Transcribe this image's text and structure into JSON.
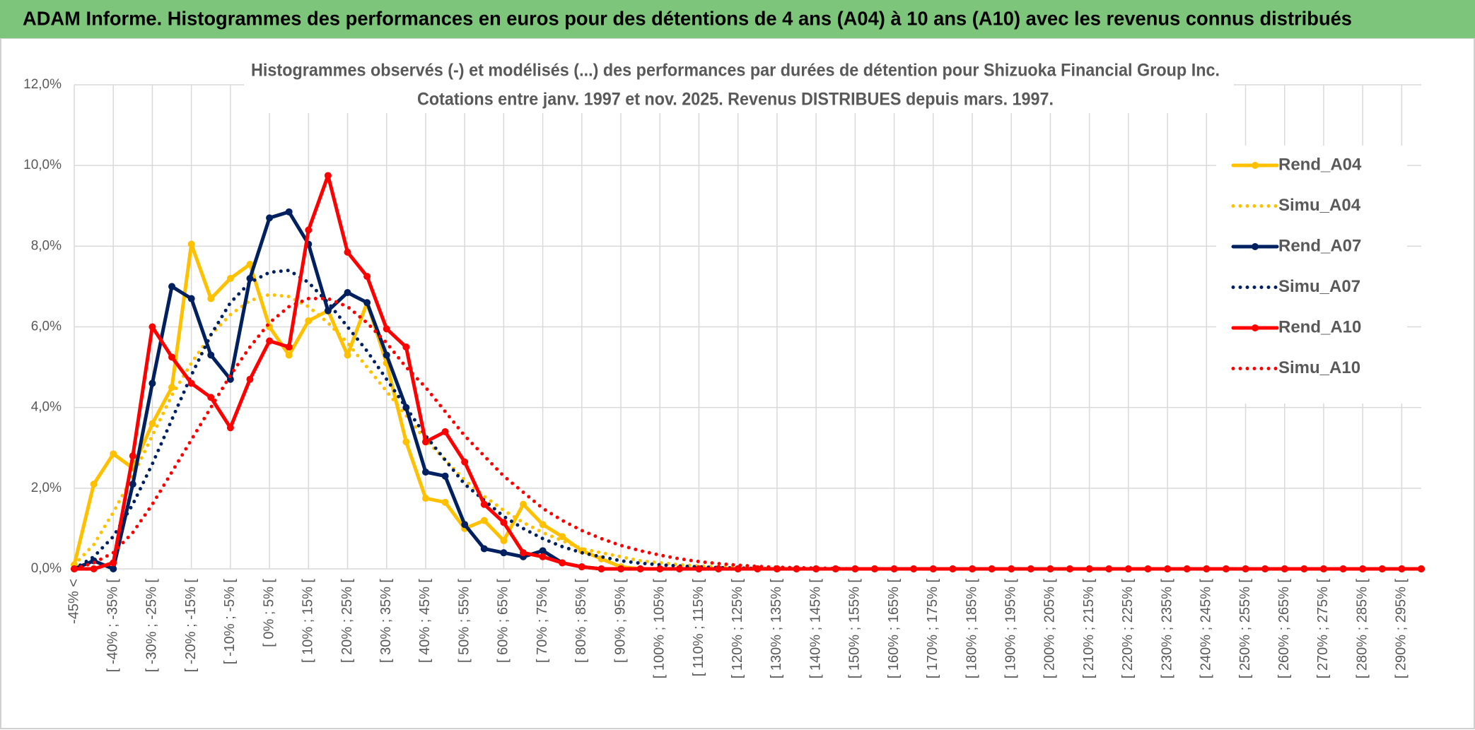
{
  "header": {
    "title": "ADAM Informe. Histogrammes des performances en euros pour des détentions de 4 ans (A04) à 10 ans (A10) avec les revenus connus distribués"
  },
  "chart_data": {
    "type": "line",
    "title": "Histogrammes observés (-) et modélisés (...) des performances par durées de détention pour Shizuoka Financial Group Inc.",
    "subtitle": "Cotations entre janv. 1997 et nov. 2025. Revenus DISTRIBUES depuis mars. 1997.",
    "categories": [
      "-45% <",
      null,
      "[ -40% ; -35% [",
      null,
      "[ -30% ; -25% [",
      null,
      "[ -20% ; -15% [",
      null,
      "[ -10% ; -5% [",
      null,
      "[ 0% ; 5% [",
      null,
      "[ 10% ; 15% [",
      null,
      "[ 20% ; 25% [",
      null,
      "[ 30% ; 35% [",
      null,
      "[ 40% ; 45% [",
      null,
      "[ 50% ; 55% [",
      null,
      "[ 60% ; 65% [",
      null,
      "[ 70% ; 75% [",
      null,
      "[ 80% ; 85% [",
      null,
      "[ 90% ; 95% [",
      null,
      "[ 100% ; 105% [",
      null,
      "[ 110% ; 115% [",
      null,
      "[ 120% ; 125% [",
      null,
      "[ 130% ; 135% [",
      null,
      "[ 140% ; 145% [",
      null,
      "[ 150% ; 155% [",
      null,
      "[ 160% ; 165% [",
      null,
      "[ 170% ; 175% [",
      null,
      "[ 180% ; 185% [",
      null,
      "[ 190% ; 195% [",
      null,
      "[ 200% ; 205% [",
      null,
      "[ 210% ; 215% [",
      null,
      "[ 220% ; 225% [",
      null,
      "[ 230% ; 235% [",
      null,
      "[ 240% ; 245% [",
      null,
      "[ 250% ; 255% [",
      null,
      "[ 260% ; 265% [",
      null,
      "[ 270% ; 275% [",
      null,
      "[ 280% ; 285% [",
      null,
      "[ 290% ; 295% [",
      null
    ],
    "series": [
      {
        "name": "Rend_A04",
        "color": "#ffc000",
        "style": "solid",
        "values": [
          0.1,
          2.1,
          2.85,
          2.5,
          3.6,
          4.5,
          8.05,
          6.7,
          7.2,
          7.55,
          6.0,
          5.3,
          6.15,
          6.4,
          5.3,
          6.6,
          5.1,
          3.15,
          1.75,
          1.65,
          1.0,
          1.2,
          0.7,
          1.6,
          1.1,
          0.8,
          0.45,
          0.25,
          0.05,
          0,
          0,
          0,
          0,
          0,
          0,
          0,
          0,
          0,
          0,
          0,
          0,
          0,
          0,
          0,
          0,
          0,
          0,
          0,
          0,
          0,
          0,
          0,
          0,
          0,
          0,
          0,
          0,
          0,
          0,
          0,
          0,
          0,
          0,
          0,
          0,
          0,
          0,
          0,
          0,
          0
        ]
      },
      {
        "name": "Simu_A04",
        "color": "#ffc000",
        "style": "dotted",
        "values": [
          0.1,
          0.6,
          1.4,
          2.3,
          3.3,
          4.3,
          5.1,
          5.8,
          6.3,
          6.65,
          6.8,
          6.75,
          6.5,
          6.1,
          5.6,
          5.0,
          4.4,
          3.8,
          3.2,
          2.7,
          2.2,
          1.8,
          1.45,
          1.15,
          0.9,
          0.7,
          0.5,
          0.4,
          0.3,
          0.2,
          0.15,
          0.1,
          0.07,
          0.05,
          0.03,
          0.02,
          0.01,
          0,
          0,
          0,
          0,
          0,
          0,
          0,
          0,
          0,
          0,
          0,
          0,
          0,
          0,
          0,
          0,
          0,
          0,
          0,
          0,
          0,
          0,
          0,
          0,
          0,
          0,
          0,
          0,
          0,
          0,
          0,
          0,
          0
        ]
      },
      {
        "name": "Rend_A07",
        "color": "#002060",
        "style": "solid",
        "values": [
          0,
          0.2,
          0,
          2.1,
          4.6,
          7.0,
          6.7,
          5.3,
          4.7,
          7.2,
          8.7,
          8.85,
          8.05,
          6.4,
          6.85,
          6.6,
          5.3,
          4.0,
          2.4,
          2.3,
          1.1,
          0.5,
          0.4,
          0.3,
          0.45,
          0.15,
          0.05,
          0,
          0,
          0,
          0,
          0,
          0,
          0,
          0,
          0,
          0,
          0,
          0,
          0,
          0,
          0,
          0,
          0,
          0,
          0,
          0,
          0,
          0,
          0,
          0,
          0,
          0,
          0,
          0,
          0,
          0,
          0,
          0,
          0,
          0,
          0,
          0,
          0,
          0,
          0,
          0,
          0,
          0,
          0
        ]
      },
      {
        "name": "Simu_A07",
        "color": "#002060",
        "style": "dotted",
        "values": [
          0,
          0.3,
          0.8,
          1.6,
          2.6,
          3.7,
          4.8,
          5.8,
          6.6,
          7.1,
          7.35,
          7.4,
          7.1,
          6.6,
          6.0,
          5.4,
          4.7,
          4.0,
          3.3,
          2.7,
          2.1,
          1.7,
          1.3,
          1.0,
          0.75,
          0.55,
          0.4,
          0.3,
          0.2,
          0.14,
          0.1,
          0.07,
          0.05,
          0.03,
          0.02,
          0.01,
          0,
          0,
          0,
          0,
          0,
          0,
          0,
          0,
          0,
          0,
          0,
          0,
          0,
          0,
          0,
          0,
          0,
          0,
          0,
          0,
          0,
          0,
          0,
          0,
          0,
          0,
          0,
          0,
          0,
          0,
          0,
          0,
          0,
          0
        ]
      },
      {
        "name": "Rend_A10",
        "color": "#ff0000",
        "style": "solid",
        "values": [
          0,
          0,
          0.15,
          2.8,
          6.0,
          5.25,
          4.6,
          4.25,
          3.5,
          4.7,
          5.65,
          5.5,
          8.4,
          9.75,
          7.85,
          7.25,
          5.95,
          5.5,
          3.15,
          3.4,
          2.65,
          1.6,
          1.15,
          0.4,
          0.3,
          0.15,
          0.05,
          0,
          0,
          0,
          0,
          0,
          0,
          0,
          0,
          0,
          0,
          0,
          0,
          0,
          0,
          0,
          0,
          0,
          0,
          0,
          0,
          0,
          0,
          0,
          0,
          0,
          0,
          0,
          0,
          0,
          0,
          0,
          0,
          0,
          0,
          0,
          0,
          0,
          0,
          0,
          0,
          0,
          0,
          0
        ]
      },
      {
        "name": "Simu_A10",
        "color": "#ff0000",
        "style": "dotted",
        "values": [
          0,
          0.15,
          0.4,
          0.9,
          1.6,
          2.4,
          3.2,
          4.0,
          4.8,
          5.5,
          6.1,
          6.5,
          6.7,
          6.7,
          6.5,
          6.1,
          5.6,
          5.0,
          4.5,
          3.9,
          3.3,
          2.8,
          2.3,
          1.9,
          1.5,
          1.2,
          0.95,
          0.75,
          0.58,
          0.45,
          0.34,
          0.25,
          0.18,
          0.13,
          0.09,
          0.06,
          0.04,
          0.03,
          0.02,
          0.01,
          0,
          0,
          0,
          0,
          0,
          0,
          0,
          0,
          0,
          0,
          0,
          0,
          0,
          0,
          0,
          0,
          0,
          0,
          0,
          0,
          0,
          0,
          0,
          0,
          0,
          0,
          0,
          0,
          0,
          0
        ]
      }
    ],
    "ylim": [
      0,
      12
    ],
    "yticks": [
      {
        "value": 0,
        "label": "0,0%"
      },
      {
        "value": 2,
        "label": "2,0%"
      },
      {
        "value": 4,
        "label": "4,0%"
      },
      {
        "value": 6,
        "label": "6,0%"
      },
      {
        "value": 8,
        "label": "8,0%"
      },
      {
        "value": 10,
        "label": "10,0%"
      },
      {
        "value": 12,
        "label": "12,0%"
      }
    ],
    "grid": true,
    "legend": "upper right"
  }
}
